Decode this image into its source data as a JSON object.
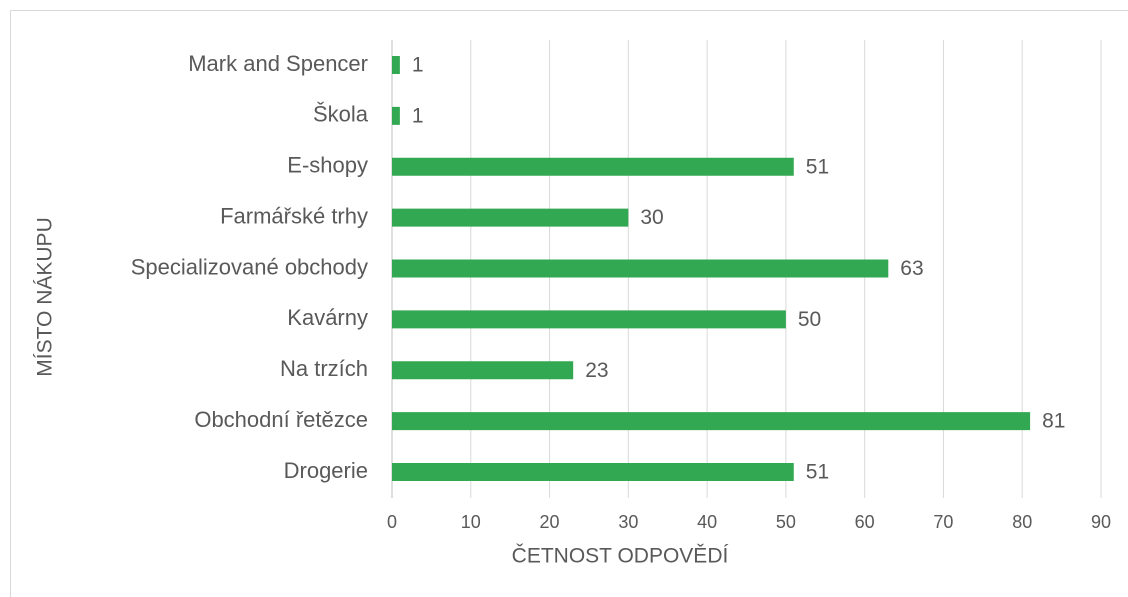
{
  "chart_data": {
    "type": "hbar",
    "categories": [
      "Mark and Spencer",
      "Škola",
      "E-shopy",
      "Farmářské trhy",
      "Specializované obchody",
      "Kavárny",
      "Na trzích",
      "Obchodní řetězce",
      "Drogerie"
    ],
    "values": [
      1,
      1,
      51,
      30,
      63,
      50,
      23,
      81,
      51
    ],
    "color": "#33a852",
    "xlim": [
      0,
      90
    ],
    "xticks": [
      0,
      10,
      20,
      30,
      40,
      50,
      60,
      70,
      80,
      90
    ],
    "x_label": "ČETNOST ODPOVĚDÍ",
    "y_label": "MÍSTO NÁKUPU",
    "grid": true
  }
}
